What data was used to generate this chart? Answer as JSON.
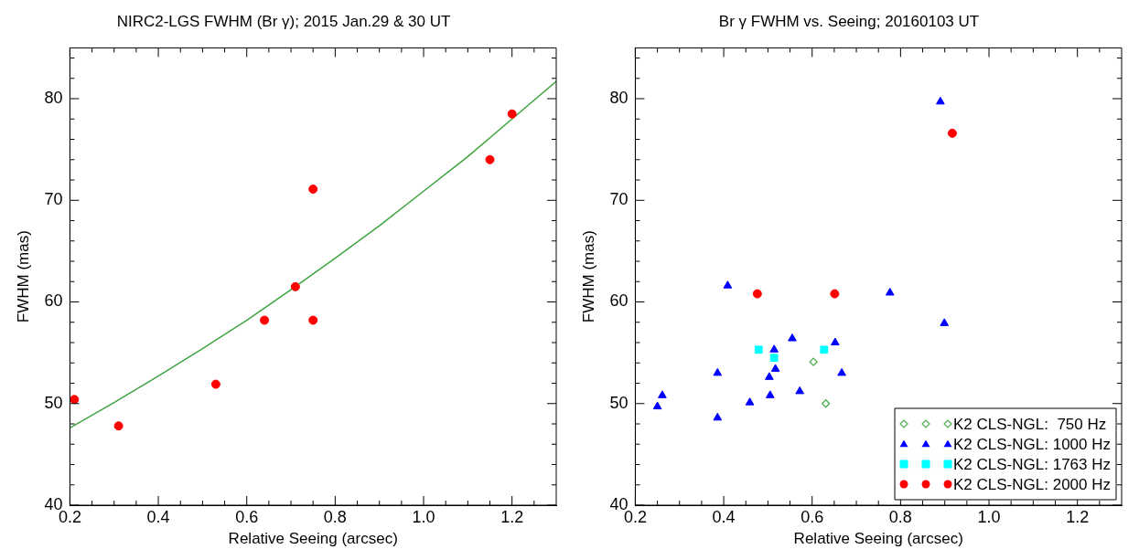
{
  "chart_data": [
    {
      "type": "scatter",
      "title": "NIRC2-LGS FWHM (Br γ); 2015 Jan.29 & 30 UT",
      "xlabel": "Relative Seeing (arcsec)",
      "ylabel": "FWHM (mas)",
      "xlim": [
        0.2,
        1.3
      ],
      "ylim": [
        40,
        85
      ],
      "xticks": [
        {
          "value": 0.2,
          "label": "0.2"
        },
        {
          "value": 0.25,
          "label": null
        },
        {
          "value": 0.3,
          "label": null
        },
        {
          "value": 0.35,
          "label": null
        },
        {
          "value": 0.4,
          "label": "0.4"
        },
        {
          "value": 0.45,
          "label": null
        },
        {
          "value": 0.5,
          "label": null
        },
        {
          "value": 0.55,
          "label": null
        },
        {
          "value": 0.6,
          "label": "0.6"
        },
        {
          "value": 0.65,
          "label": null
        },
        {
          "value": 0.7,
          "label": null
        },
        {
          "value": 0.75,
          "label": null
        },
        {
          "value": 0.8,
          "label": "0.8"
        },
        {
          "value": 0.85,
          "label": null
        },
        {
          "value": 0.9,
          "label": null
        },
        {
          "value": 0.95,
          "label": null
        },
        {
          "value": 1.0,
          "label": "1.0"
        },
        {
          "value": 1.05,
          "label": null
        },
        {
          "value": 1.1,
          "label": null
        },
        {
          "value": 1.15,
          "label": null
        },
        {
          "value": 1.2,
          "label": "1.2"
        },
        {
          "value": 1.25,
          "label": null
        }
      ],
      "yticks": [
        40,
        {
          "value": 42,
          "label": null
        },
        {
          "value": 44,
          "label": null
        },
        {
          "value": 46,
          "label": null
        },
        {
          "value": 48,
          "label": null
        },
        50,
        {
          "value": 52,
          "label": null
        },
        {
          "value": 54,
          "label": null
        },
        {
          "value": 56,
          "label": null
        },
        {
          "value": 58,
          "label": null
        },
        60,
        {
          "value": 62,
          "label": null
        },
        {
          "value": 64,
          "label": null
        },
        {
          "value": 66,
          "label": null
        },
        {
          "value": 68,
          "label": null
        },
        70,
        {
          "value": 72,
          "label": null
        },
        {
          "value": 74,
          "label": null
        },
        {
          "value": 76,
          "label": null
        },
        {
          "value": 78,
          "label": null
        },
        80,
        {
          "value": 82,
          "label": null
        },
        {
          "value": 84,
          "label": null
        }
      ],
      "legend": false,
      "series": [
        {
          "color": "#ff0000",
          "marker": "circle",
          "x": [
            0.21,
            0.31,
            0.53,
            0.64,
            0.71,
            0.75,
            0.75,
            1.15,
            1.2
          ],
          "values": [
            50.4,
            47.8,
            51.9,
            58.2,
            61.5,
            71.1,
            58.2,
            74.0,
            78.5
          ]
        },
        {
          "type": "line",
          "color": "#3fa33f",
          "marker": "none",
          "x": [
            0.2,
            0.3,
            0.4,
            0.5,
            0.6,
            0.7,
            0.8,
            0.9,
            1.0,
            1.1,
            1.2,
            1.3
          ],
          "values": [
            47.6,
            50.1,
            52.7,
            55.4,
            58.2,
            61.2,
            64.3,
            67.5,
            70.9,
            74.3,
            78.0,
            81.7
          ]
        }
      ]
    },
    {
      "type": "scatter",
      "title": "Br γ FWHM vs. Seeing; 20160103 UT",
      "xlabel": "Relative Seeing (arcsec)",
      "ylabel": "FWHM (mas)",
      "xlim": [
        0.2,
        1.3
      ],
      "ylim": [
        40,
        85
      ],
      "xticks": [
        {
          "value": 0.2,
          "label": "0.2"
        },
        {
          "value": 0.25,
          "label": null
        },
        {
          "value": 0.3,
          "label": null
        },
        {
          "value": 0.35,
          "label": null
        },
        {
          "value": 0.4,
          "label": "0.4"
        },
        {
          "value": 0.45,
          "label": null
        },
        {
          "value": 0.5,
          "label": null
        },
        {
          "value": 0.55,
          "label": null
        },
        {
          "value": 0.6,
          "label": "0.6"
        },
        {
          "value": 0.65,
          "label": null
        },
        {
          "value": 0.7,
          "label": null
        },
        {
          "value": 0.75,
          "label": null
        },
        {
          "value": 0.8,
          "label": "0.8"
        },
        {
          "value": 0.85,
          "label": null
        },
        {
          "value": 0.9,
          "label": null
        },
        {
          "value": 0.95,
          "label": null
        },
        {
          "value": 1.0,
          "label": "1.0"
        },
        {
          "value": 1.05,
          "label": null
        },
        {
          "value": 1.1,
          "label": null
        },
        {
          "value": 1.15,
          "label": null
        },
        {
          "value": 1.2,
          "label": "1.2"
        },
        {
          "value": 1.25,
          "label": null
        }
      ],
      "yticks": [
        40,
        {
          "value": 42,
          "label": null
        },
        {
          "value": 44,
          "label": null
        },
        {
          "value": 46,
          "label": null
        },
        {
          "value": 48,
          "label": null
        },
        50,
        {
          "value": 52,
          "label": null
        },
        {
          "value": 54,
          "label": null
        },
        {
          "value": 56,
          "label": null
        },
        {
          "value": 58,
          "label": null
        },
        60,
        {
          "value": 62,
          "label": null
        },
        {
          "value": 64,
          "label": null
        },
        {
          "value": 66,
          "label": null
        },
        {
          "value": 68,
          "label": null
        },
        70,
        {
          "value": 72,
          "label": null
        },
        {
          "value": 74,
          "label": null
        },
        {
          "value": 76,
          "label": null
        },
        {
          "value": 78,
          "label": null
        },
        80,
        {
          "value": 82,
          "label": null
        },
        {
          "value": 84,
          "label": null
        }
      ],
      "legend": "bottom right",
      "series": [
        {
          "name": "K2 CLS-NGL:  750 Hz",
          "color": "#4caf50",
          "marker": "diamond",
          "x": [
            0.603,
            0.631
          ],
          "values": [
            54.1,
            50.0
          ]
        },
        {
          "name": "K2 CLS-NGL: 1000 Hz",
          "color": "#0000ff",
          "marker": "triangle",
          "x": [
            0.89,
            0.409,
            0.776,
            0.899,
            0.555,
            0.514,
            0.652,
            0.517,
            0.386,
            0.667,
            0.503,
            0.261,
            0.572,
            0.505,
            0.459,
            0.25,
            0.386
          ],
          "values": [
            79.7,
            61.6,
            60.9,
            57.9,
            56.4,
            55.3,
            56.0,
            53.4,
            53.0,
            53.0,
            52.6,
            50.8,
            51.2,
            50.8,
            50.1,
            49.7,
            48.6
          ]
        },
        {
          "name": "K2 CLS-NGL: 1763 Hz",
          "color": "#00ffff",
          "marker": "square",
          "x": [
            0.479,
            0.627,
            0.514
          ],
          "values": [
            55.3,
            55.3,
            54.5
          ]
        },
        {
          "name": "K2 CLS-NGL: 2000 Hz",
          "color": "#ff0000",
          "marker": "circle",
          "x": [
            0.476,
            0.651,
            0.917
          ],
          "values": [
            60.8,
            60.8,
            76.6
          ]
        }
      ]
    }
  ]
}
